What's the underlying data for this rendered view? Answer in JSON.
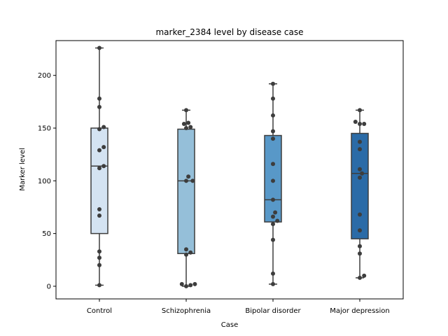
{
  "chart_data": {
    "type": "box",
    "title": "marker_2384 level by disease case",
    "xlabel": "Case",
    "ylabel": "Marker level",
    "categories": [
      "Control",
      "Schizophrenia",
      "Bipolar disorder",
      "Major depression"
    ],
    "ylim": [
      -12,
      233
    ],
    "yticks": [
      0,
      50,
      100,
      150,
      200
    ],
    "boxes": [
      {
        "whisker_low": 1,
        "q1": 50,
        "median": 114,
        "q3": 150,
        "whisker_high": 226,
        "color": "#d4e3f2"
      },
      {
        "whisker_low": 0,
        "q1": 31,
        "median": 100,
        "q3": 149,
        "whisker_high": 167,
        "color": "#95bfd9"
      },
      {
        "whisker_low": 2,
        "q1": 61,
        "median": 82,
        "q3": 143,
        "whisker_high": 192,
        "color": "#5898c8"
      },
      {
        "whisker_low": 8,
        "q1": 45,
        "median": 107,
        "q3": 145,
        "whisker_high": 167,
        "color": "#2b6ba7"
      }
    ],
    "points": [
      [
        1,
        20,
        27,
        33,
        67,
        73,
        112,
        114,
        129,
        132,
        149,
        151,
        170,
        178,
        226
      ],
      [
        0,
        1,
        2,
        2,
        30,
        32,
        35,
        100,
        100,
        104,
        150,
        151,
        154,
        155,
        167
      ],
      [
        2,
        12,
        44,
        59,
        62,
        66,
        70,
        82,
        100,
        116,
        140,
        147,
        162,
        178,
        192
      ],
      [
        8,
        10,
        31,
        38,
        53,
        68,
        103,
        107,
        111,
        130,
        137,
        154,
        154,
        156,
        167
      ]
    ],
    "point_color": "#3d3d3d",
    "line_color": "#3d3d3d"
  }
}
